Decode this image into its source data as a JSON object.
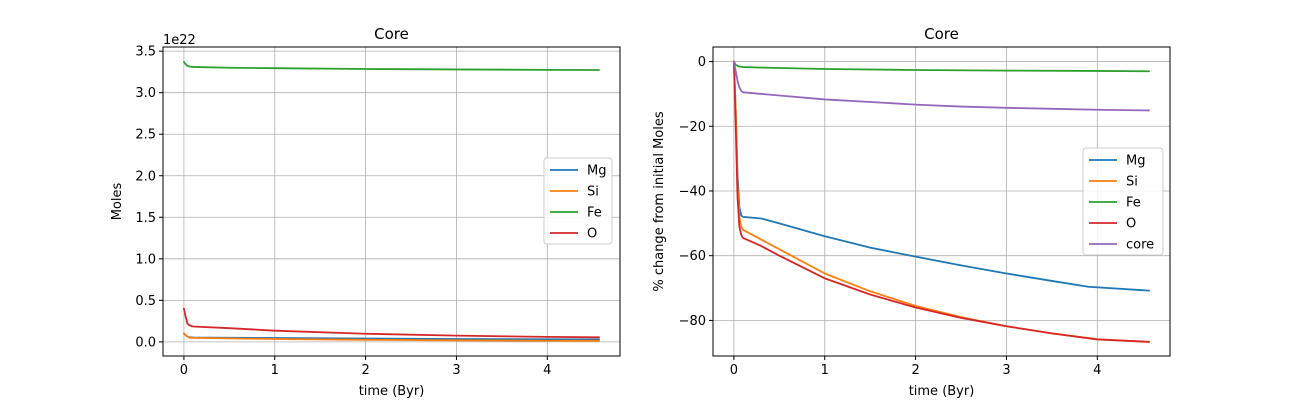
{
  "colors": {
    "Mg": "#1f77b4",
    "Si": "#ff7f0e",
    "Fe": "#2ca02c",
    "O": "#d62728",
    "core": "#9467bd"
  },
  "chart_data": [
    {
      "type": "line",
      "title": "Core",
      "xlabel": "time (Byr)",
      "ylabel": "Moles",
      "offset_text": "1e22",
      "xlim": [
        -0.23,
        4.8
      ],
      "ylim": [
        -0.17,
        3.55
      ],
      "xticks": [
        0,
        1,
        2,
        3,
        4
      ],
      "xtick_labels": [
        "0",
        "1",
        "2",
        "3",
        "4"
      ],
      "yticks": [
        0.0,
        0.5,
        1.0,
        1.5,
        2.0,
        2.5,
        3.0,
        3.5
      ],
      "ytick_labels": [
        "0.0",
        "0.5",
        "1.0",
        "1.5",
        "2.0",
        "2.5",
        "3.0",
        "3.5"
      ],
      "grid": true,
      "legend": "center-right",
      "series": [
        {
          "name": "Mg",
          "x": [
            0,
            0.03,
            0.06,
            0.1,
            0.5,
            1,
            2,
            3,
            4,
            4.57
          ],
          "y": [
            0.1,
            0.07,
            0.055,
            0.052,
            0.049,
            0.046,
            0.04,
            0.035,
            0.031,
            0.03
          ]
        },
        {
          "name": "Si",
          "x": [
            0,
            0.03,
            0.06,
            0.1,
            0.5,
            1,
            2,
            3,
            4,
            4.57
          ],
          "y": [
            0.1,
            0.07,
            0.05,
            0.048,
            0.042,
            0.035,
            0.025,
            0.019,
            0.014,
            0.013
          ]
        },
        {
          "name": "Fe",
          "x": [
            0,
            0.03,
            0.06,
            0.1,
            0.5,
            1,
            2,
            3,
            4,
            4.57
          ],
          "y": [
            3.37,
            3.33,
            3.315,
            3.31,
            3.3,
            3.295,
            3.285,
            3.28,
            3.275,
            3.273
          ]
        },
        {
          "name": "O",
          "x": [
            0,
            0.02,
            0.04,
            0.06,
            0.1,
            0.5,
            1,
            2,
            3,
            4,
            4.57
          ],
          "y": [
            0.4,
            0.3,
            0.22,
            0.2,
            0.185,
            0.165,
            0.135,
            0.098,
            0.075,
            0.06,
            0.055
          ]
        }
      ]
    },
    {
      "type": "line",
      "title": "Core",
      "xlabel": "time (Byr)",
      "ylabel": "% change from initial Moles",
      "xlim": [
        -0.23,
        4.8
      ],
      "ylim": [
        -91,
        4.5
      ],
      "xticks": [
        0,
        1,
        2,
        3,
        4
      ],
      "xtick_labels": [
        "0",
        "1",
        "2",
        "3",
        "4"
      ],
      "yticks": [
        0,
        -20,
        -40,
        -60,
        -80
      ],
      "ytick_labels": [
        "0",
        "−20",
        "−40",
        "−60",
        "−80"
      ],
      "grid": true,
      "legend": "center-right",
      "series": [
        {
          "name": "Mg",
          "x": [
            0,
            0.02,
            0.04,
            0.06,
            0.08,
            0.1,
            0.3,
            0.5,
            1,
            1.5,
            2,
            2.5,
            3,
            3.5,
            3.9,
            4.57
          ],
          "y": [
            0,
            -15,
            -35,
            -45,
            -47.5,
            -48,
            -48.5,
            -50,
            -54,
            -57.5,
            -60.3,
            -63,
            -65.5,
            -67.8,
            -69.6,
            -70.8
          ]
        },
        {
          "name": "Si",
          "x": [
            0,
            0.02,
            0.04,
            0.06,
            0.08,
            0.1,
            0.3,
            0.5,
            1,
            1.5,
            2,
            2.5,
            3,
            3.5,
            4,
            4.57
          ],
          "y": [
            0,
            -15,
            -38,
            -48,
            -51,
            -52,
            -55,
            -58,
            -65.5,
            -71,
            -75.5,
            -79,
            -81.8,
            -84,
            -85.8,
            -86.7
          ]
        },
        {
          "name": "Fe",
          "x": [
            0,
            0.02,
            0.05,
            0.1,
            0.5,
            1,
            2,
            3,
            4,
            4.57
          ],
          "y": [
            0,
            -1,
            -1.5,
            -1.7,
            -2.0,
            -2.3,
            -2.6,
            -2.8,
            -2.9,
            -3.0
          ]
        },
        {
          "name": "O",
          "x": [
            0,
            0.02,
            0.04,
            0.06,
            0.08,
            0.1,
            0.3,
            0.5,
            1,
            1.5,
            2,
            2.5,
            3,
            3.5,
            4,
            4.57
          ],
          "y": [
            0,
            -20,
            -42,
            -51,
            -53.5,
            -54.5,
            -57,
            -60,
            -67,
            -72,
            -76,
            -79.2,
            -81.8,
            -84,
            -85.9,
            -86.6
          ]
        },
        {
          "name": "core",
          "x": [
            0,
            0.02,
            0.04,
            0.06,
            0.08,
            0.1,
            0.5,
            1,
            1.5,
            2,
            2.5,
            3,
            3.5,
            4,
            4.57
          ],
          "y": [
            0,
            -3,
            -6,
            -8,
            -9,
            -9.5,
            -10.5,
            -11.7,
            -12.5,
            -13.3,
            -13.9,
            -14.3,
            -14.6,
            -14.9,
            -15.1
          ]
        }
      ]
    }
  ]
}
